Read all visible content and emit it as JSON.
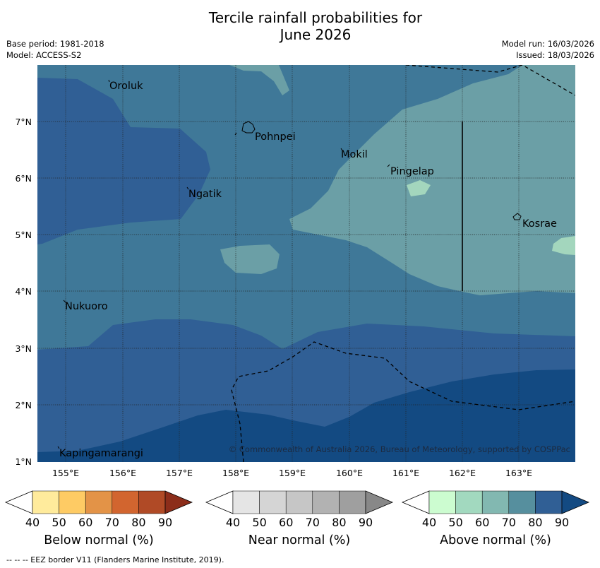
{
  "title_line1": "Tercile rainfall probabilities for",
  "title_line2": "June 2026",
  "base_period": "Base period: 1981-2018",
  "model": "Model: ACCESS-S2",
  "model_run": "Model run: 16/03/2026",
  "issued": "Issued: 18/03/2026",
  "copyright": "© Commonwealth of Australia 2026, Bureau of Meteorology, supported by COSPPac",
  "footer": "--  --  -- EEZ border V11 (Flanders Marine Institute, 2019).",
  "map": {
    "lon_ticks": [
      "155°E",
      "156°E",
      "157°E",
      "158°E",
      "159°E",
      "160°E",
      "161°E",
      "162°E",
      "163°E"
    ],
    "lat_ticks": [
      "7°N",
      "6°N",
      "5°N",
      "4°N",
      "3°N",
      "2°N",
      "1°N"
    ],
    "places": [
      "Oroluk",
      "Pohnpei",
      "Mokil",
      "Pingelap",
      "Ngatik",
      "Kosrae",
      "Nukuoro",
      "Kapingamarangi"
    ]
  },
  "colorbars": {
    "below": {
      "title": "Below normal (%)",
      "ticks": [
        "40",
        "50",
        "60",
        "70",
        "80",
        "90"
      ],
      "colors": [
        "#ffffff",
        "#ffeb9c",
        "#fecb64",
        "#e39347",
        "#d2652f",
        "#b04a26",
        "#8c2d1a"
      ]
    },
    "near": {
      "title": "Near normal (%)",
      "ticks": [
        "40",
        "50",
        "60",
        "70",
        "80",
        "90"
      ],
      "colors": [
        "#ffffff",
        "#e5e5e5",
        "#d5d5d5",
        "#c6c6c6",
        "#b2b2b2",
        "#9f9f9f",
        "#888888"
      ]
    },
    "above": {
      "title": "Above normal (%)",
      "ticks": [
        "40",
        "50",
        "60",
        "70",
        "80",
        "90"
      ],
      "colors": [
        "#ffffff",
        "#ccfcd0",
        "#a2d9bf",
        "#82b8b1",
        "#568f9e",
        "#305f95",
        "#134a82"
      ]
    }
  },
  "palette": {
    "above_60": "#6b9fa6",
    "above_70": "#3f7898",
    "above_80": "#305f95",
    "above_90": "#134a82",
    "above_50": "#a3d6bd"
  }
}
